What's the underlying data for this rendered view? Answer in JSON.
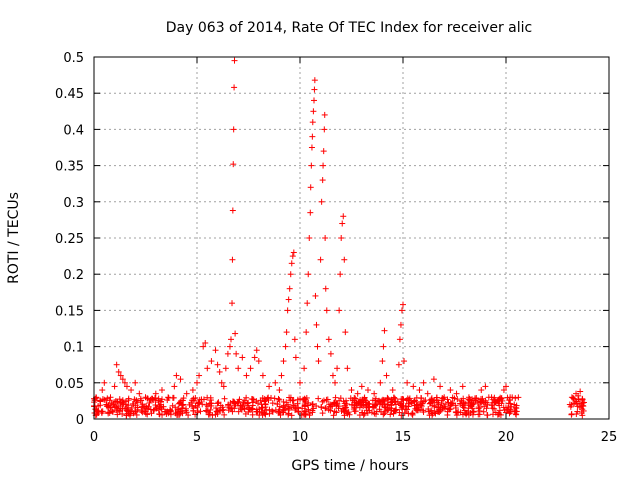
{
  "chart_data": {
    "type": "scatter",
    "title": "Day 063 of 2014, Rate Of TEC Index for receiver alic",
    "xlabel": "GPS time / hours",
    "ylabel": "ROTI / TECUs",
    "xlim": [
      0,
      25
    ],
    "ylim": [
      0,
      0.5
    ],
    "x_ticks": [
      0,
      5,
      10,
      15,
      20,
      25
    ],
    "x_tick_labels": [
      "0",
      "5",
      "10",
      "15",
      "20",
      "25"
    ],
    "y_ticks": [
      0,
      0.05,
      0.1,
      0.15,
      0.2,
      0.25,
      0.3,
      0.35,
      0.4,
      0.45,
      0.5
    ],
    "y_tick_labels": [
      "0",
      "0.05",
      "0.1",
      "0.15",
      "0.2",
      "0.25",
      "0.3",
      "0.35",
      "0.4",
      "0.45",
      "0.5"
    ],
    "grid": true,
    "marker": "+",
    "series": [
      {
        "color": "#ff0000",
        "points": [
          [
            0.1,
            0.03
          ],
          [
            0.2,
            0.018
          ],
          [
            0.3,
            0.025
          ],
          [
            0.4,
            0.04
          ],
          [
            0.5,
            0.05
          ],
          [
            0.6,
            0.02
          ],
          [
            0.8,
            0.03
          ],
          [
            1.0,
            0.045
          ],
          [
            1.1,
            0.075
          ],
          [
            1.2,
            0.065
          ],
          [
            1.3,
            0.06
          ],
          [
            1.4,
            0.055
          ],
          [
            1.5,
            0.05
          ],
          [
            1.6,
            0.045
          ],
          [
            1.8,
            0.04
          ],
          [
            2.0,
            0.05
          ],
          [
            2.2,
            0.035
          ],
          [
            2.5,
            0.03
          ],
          [
            2.8,
            0.028
          ],
          [
            3.0,
            0.035
          ],
          [
            3.3,
            0.04
          ],
          [
            3.6,
            0.03
          ],
          [
            3.9,
            0.045
          ],
          [
            4.0,
            0.06
          ],
          [
            4.2,
            0.055
          ],
          [
            4.5,
            0.035
          ],
          [
            4.8,
            0.04
          ],
          [
            5.0,
            0.05
          ],
          [
            5.1,
            0.06
          ],
          [
            5.3,
            0.1
          ],
          [
            5.4,
            0.105
          ],
          [
            5.5,
            0.07
          ],
          [
            5.7,
            0.08
          ],
          [
            5.9,
            0.095
          ],
          [
            6.0,
            0.075
          ],
          [
            6.1,
            0.065
          ],
          [
            6.2,
            0.05
          ],
          [
            6.3,
            0.045
          ],
          [
            6.4,
            0.07
          ],
          [
            6.5,
            0.09
          ],
          [
            6.6,
            0.1
          ],
          [
            6.65,
            0.11
          ],
          [
            6.7,
            0.16
          ],
          [
            6.72,
            0.22
          ],
          [
            6.74,
            0.288
          ],
          [
            6.76,
            0.352
          ],
          [
            6.78,
            0.4
          ],
          [
            6.8,
            0.458
          ],
          [
            6.82,
            0.495
          ],
          [
            6.85,
            0.118
          ],
          [
            6.9,
            0.09
          ],
          [
            7.0,
            0.07
          ],
          [
            7.2,
            0.085
          ],
          [
            7.4,
            0.06
          ],
          [
            7.6,
            0.07
          ],
          [
            7.8,
            0.085
          ],
          [
            7.9,
            0.095
          ],
          [
            8.0,
            0.08
          ],
          [
            8.2,
            0.06
          ],
          [
            8.5,
            0.045
          ],
          [
            8.8,
            0.05
          ],
          [
            9.0,
            0.04
          ],
          [
            9.1,
            0.06
          ],
          [
            9.2,
            0.08
          ],
          [
            9.3,
            0.1
          ],
          [
            9.35,
            0.12
          ],
          [
            9.4,
            0.15
          ],
          [
            9.45,
            0.165
          ],
          [
            9.5,
            0.18
          ],
          [
            9.55,
            0.2
          ],
          [
            9.6,
            0.215
          ],
          [
            9.65,
            0.225
          ],
          [
            9.7,
            0.23
          ],
          [
            9.75,
            0.11
          ],
          [
            9.8,
            0.085
          ],
          [
            10.0,
            0.05
          ],
          [
            10.2,
            0.07
          ],
          [
            10.3,
            0.12
          ],
          [
            10.35,
            0.16
          ],
          [
            10.4,
            0.2
          ],
          [
            10.45,
            0.25
          ],
          [
            10.5,
            0.285
          ],
          [
            10.52,
            0.32
          ],
          [
            10.55,
            0.35
          ],
          [
            10.58,
            0.375
          ],
          [
            10.6,
            0.39
          ],
          [
            10.62,
            0.41
          ],
          [
            10.65,
            0.425
          ],
          [
            10.68,
            0.44
          ],
          [
            10.7,
            0.455
          ],
          [
            10.72,
            0.468
          ],
          [
            10.75,
            0.17
          ],
          [
            10.8,
            0.13
          ],
          [
            10.85,
            0.1
          ],
          [
            10.9,
            0.08
          ],
          [
            11.0,
            0.22
          ],
          [
            11.05,
            0.3
          ],
          [
            11.1,
            0.33
          ],
          [
            11.12,
            0.35
          ],
          [
            11.15,
            0.37
          ],
          [
            11.18,
            0.4
          ],
          [
            11.2,
            0.42
          ],
          [
            11.22,
            0.25
          ],
          [
            11.25,
            0.18
          ],
          [
            11.3,
            0.15
          ],
          [
            11.4,
            0.11
          ],
          [
            11.5,
            0.09
          ],
          [
            11.6,
            0.06
          ],
          [
            11.7,
            0.05
          ],
          [
            11.8,
            0.07
          ],
          [
            11.9,
            0.15
          ],
          [
            11.95,
            0.2
          ],
          [
            12.0,
            0.25
          ],
          [
            12.05,
            0.27
          ],
          [
            12.1,
            0.28
          ],
          [
            12.15,
            0.22
          ],
          [
            12.2,
            0.12
          ],
          [
            12.3,
            0.07
          ],
          [
            12.5,
            0.04
          ],
          [
            12.8,
            0.035
          ],
          [
            13.0,
            0.045
          ],
          [
            13.3,
            0.04
          ],
          [
            13.6,
            0.035
          ],
          [
            13.9,
            0.05
          ],
          [
            14.0,
            0.08
          ],
          [
            14.05,
            0.1
          ],
          [
            14.1,
            0.122
          ],
          [
            14.2,
            0.06
          ],
          [
            14.5,
            0.04
          ],
          [
            14.8,
            0.075
          ],
          [
            14.85,
            0.11
          ],
          [
            14.9,
            0.13
          ],
          [
            14.95,
            0.15
          ],
          [
            15.0,
            0.158
          ],
          [
            15.05,
            0.08
          ],
          [
            15.2,
            0.05
          ],
          [
            15.5,
            0.045
          ],
          [
            15.8,
            0.04
          ],
          [
            16.0,
            0.05
          ],
          [
            16.2,
            0.035
          ],
          [
            16.5,
            0.055
          ],
          [
            16.8,
            0.045
          ],
          [
            17.0,
            0.03
          ],
          [
            17.3,
            0.04
          ],
          [
            17.6,
            0.035
          ],
          [
            17.9,
            0.045
          ],
          [
            18.2,
            0.03
          ],
          [
            18.5,
            0.028
          ],
          [
            18.8,
            0.04
          ],
          [
            19.0,
            0.045
          ],
          [
            19.3,
            0.03
          ],
          [
            19.6,
            0.025
          ],
          [
            19.9,
            0.04
          ],
          [
            20.0,
            0.045
          ],
          [
            20.2,
            0.03
          ],
          [
            20.4,
            0.02
          ],
          [
            20.5,
            0.015
          ],
          [
            23.1,
            0.02
          ],
          [
            23.2,
            0.03
          ],
          [
            23.3,
            0.028
          ],
          [
            23.4,
            0.035
          ],
          [
            23.5,
            0.032
          ],
          [
            23.6,
            0.038
          ],
          [
            23.7,
            0.025
          ]
        ]
      }
    ],
    "background_band": {
      "segments": [
        [
          0.0,
          20.6
        ],
        [
          23.1,
          23.8
        ]
      ],
      "y_range": [
        0.005,
        0.03
      ]
    }
  }
}
